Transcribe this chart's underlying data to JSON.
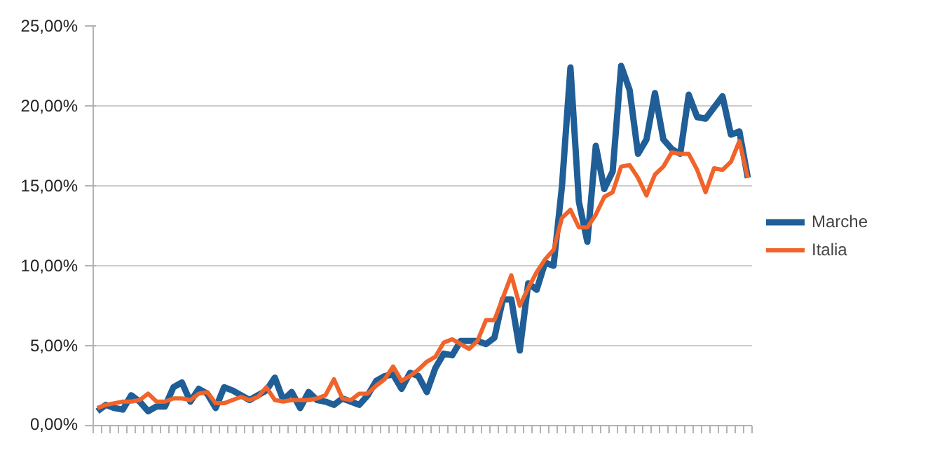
{
  "chart_data": {
    "type": "line",
    "categories": [
      null,
      null,
      null,
      null,
      null,
      null,
      null,
      null,
      null,
      null,
      null,
      null,
      null,
      null,
      null,
      null,
      null,
      null,
      null,
      null,
      null,
      null,
      null,
      null,
      null,
      null,
      null,
      null,
      null,
      null,
      null,
      null,
      null,
      null,
      null,
      null,
      null,
      null,
      null,
      null,
      null,
      null,
      null,
      null,
      null,
      null,
      null,
      null,
      null,
      null,
      null,
      null,
      null,
      null,
      null,
      null,
      null,
      null,
      null,
      null,
      null,
      null,
      null,
      null,
      null,
      null,
      null,
      null,
      null,
      null,
      null,
      null,
      null,
      null,
      null,
      null,
      null,
      null
    ],
    "series": [
      {
        "name": "Marche",
        "color": "#1f5e96",
        "values": [
          0.9,
          1.3,
          1.1,
          1.0,
          1.9,
          1.5,
          0.9,
          1.2,
          1.2,
          2.4,
          2.7,
          1.5,
          2.3,
          2.0,
          1.1,
          2.4,
          2.2,
          1.9,
          1.6,
          1.9,
          2.2,
          3.0,
          1.6,
          2.1,
          1.1,
          2.1,
          1.6,
          1.5,
          1.3,
          1.7,
          1.5,
          1.3,
          1.9,
          2.8,
          3.1,
          3.2,
          2.3,
          3.3,
          3.1,
          2.1,
          3.6,
          4.5,
          4.4,
          5.3,
          5.3,
          5.3,
          5.1,
          5.5,
          7.9,
          7.9,
          4.7,
          8.9,
          8.5,
          10.2,
          10.0,
          15.0,
          22.4,
          14.0,
          11.5,
          17.5,
          14.8,
          15.9,
          22.5,
          21.0,
          17.0,
          17.9,
          20.8,
          17.9,
          17.3,
          17.0,
          20.7,
          19.3,
          19.2,
          19.9,
          20.6,
          18.2,
          18.4,
          15.5
        ]
      },
      {
        "name": "Italia",
        "color": "#f0632a",
        "values": [
          1.1,
          1.3,
          1.4,
          1.5,
          1.5,
          1.6,
          2.0,
          1.5,
          1.5,
          1.7,
          1.7,
          1.6,
          2.0,
          2.1,
          1.4,
          1.4,
          1.6,
          1.8,
          1.6,
          1.8,
          2.4,
          1.6,
          1.5,
          1.6,
          1.6,
          1.6,
          1.7,
          1.9,
          2.9,
          1.7,
          1.6,
          2.0,
          2.0,
          2.5,
          2.9,
          3.7,
          2.8,
          3.1,
          3.5,
          4.0,
          4.3,
          5.2,
          5.4,
          5.1,
          4.8,
          5.3,
          6.6,
          6.6,
          8.0,
          9.4,
          7.5,
          8.6,
          9.6,
          10.4,
          11.0,
          13.0,
          13.5,
          12.4,
          12.4,
          13.2,
          14.3,
          14.6,
          16.2,
          16.3,
          15.5,
          14.4,
          15.7,
          16.2,
          17.1,
          17.0,
          17.0,
          16.0,
          14.6,
          16.1,
          16.0,
          16.5,
          17.8,
          15.5
        ]
      }
    ],
    "ylim": [
      0,
      25
    ],
    "yticks": [
      {
        "value": 0,
        "label": "0,00%"
      },
      {
        "value": 5,
        "label": "5,00%"
      },
      {
        "value": 10,
        "label": "10,00%"
      },
      {
        "value": 15,
        "label": "15,00%"
      },
      {
        "value": 20,
        "label": "20,00%"
      },
      {
        "value": 25,
        "label": "25,00%"
      }
    ],
    "grid": "y",
    "legend": "right",
    "tick_labels": "y",
    "line_style": "solid"
  }
}
